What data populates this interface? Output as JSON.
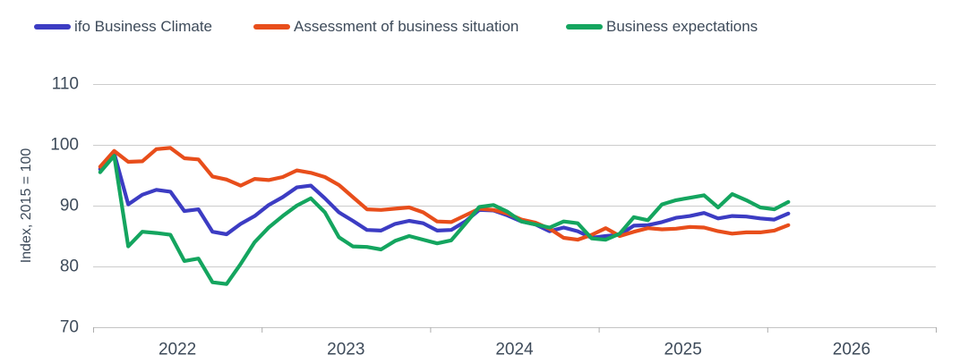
{
  "chart_data": {
    "type": "line",
    "title": "",
    "ylabel": "Index, 2015 = 100",
    "ylim": [
      70,
      110
    ],
    "y_ticks": [
      110,
      100,
      90,
      80,
      70
    ],
    "x_tick_year_labels": [
      "2022",
      "2023",
      "2024",
      "2025",
      "2026"
    ],
    "x_domain_months": 60,
    "x_start_month": "2022-01",
    "grid": "horizontal",
    "legend_position": "top",
    "months": [
      "2022-01",
      "2022-02",
      "2022-03",
      "2022-04",
      "2022-05",
      "2022-06",
      "2022-07",
      "2022-08",
      "2022-09",
      "2022-10",
      "2022-11",
      "2022-12",
      "2023-01",
      "2023-02",
      "2023-03",
      "2023-04",
      "2023-05",
      "2023-06",
      "2023-07",
      "2023-08",
      "2023-09",
      "2023-10",
      "2023-11",
      "2023-12",
      "2024-01",
      "2024-02",
      "2024-03",
      "2024-04",
      "2024-05",
      "2024-06",
      "2024-07",
      "2024-08",
      "2024-09",
      "2024-10",
      "2024-11",
      "2024-12",
      "2025-01",
      "2025-02",
      "2025-03",
      "2025-04",
      "2025-05",
      "2025-06",
      "2025-07",
      "2025-08",
      "2025-09",
      "2025-10",
      "2025-11",
      "2025-12",
      "2026-01",
      "2026-02"
    ],
    "series": [
      {
        "name": "ifo Business Climate",
        "color": "#3c3cc3",
        "values": [
          96.0,
          98.6,
          90.2,
          91.8,
          92.6,
          92.3,
          89.1,
          89.4,
          85.7,
          85.3,
          87.0,
          88.3,
          90.1,
          91.4,
          93.0,
          93.3,
          91.2,
          88.9,
          87.5,
          86.0,
          85.9,
          87.0,
          87.5,
          87.1,
          85.9,
          86.0,
          87.4,
          89.3,
          89.2,
          88.4,
          87.4,
          86.9,
          85.8,
          86.4,
          85.8,
          84.7,
          85.0,
          85.2,
          86.7,
          86.8,
          87.3,
          88.0,
          88.3,
          88.8,
          87.9,
          88.3,
          88.2,
          87.9,
          87.7,
          88.7
        ]
      },
      {
        "name": "Assessment of business situation",
        "color": "#e84e1b",
        "values": [
          96.4,
          99.0,
          97.2,
          97.3,
          99.3,
          99.5,
          97.8,
          97.6,
          94.8,
          94.3,
          93.3,
          94.4,
          94.2,
          94.7,
          95.8,
          95.4,
          94.7,
          93.4,
          91.4,
          89.4,
          89.3,
          89.5,
          89.7,
          88.9,
          87.4,
          87.3,
          88.4,
          89.5,
          89.3,
          88.7,
          87.7,
          87.2,
          86.2,
          84.7,
          84.4,
          85.2,
          86.3,
          85.0,
          85.7,
          86.3,
          86.1,
          86.2,
          86.5,
          86.4,
          85.8,
          85.4,
          85.6,
          85.6,
          85.9,
          86.8
        ]
      },
      {
        "name": "Business expectations",
        "color": "#14a55f",
        "values": [
          95.5,
          98.2,
          83.3,
          85.7,
          85.5,
          85.2,
          80.9,
          81.3,
          77.4,
          77.1,
          80.4,
          84.0,
          86.4,
          88.3,
          90.0,
          91.2,
          88.9,
          84.8,
          83.3,
          83.2,
          82.8,
          84.2,
          85.0,
          84.4,
          83.8,
          84.3,
          87.0,
          89.8,
          90.1,
          89.0,
          87.4,
          86.9,
          86.4,
          87.4,
          87.1,
          84.6,
          84.4,
          85.4,
          88.1,
          87.6,
          90.2,
          90.9,
          91.3,
          91.7,
          89.7,
          91.9,
          90.9,
          89.7,
          89.4,
          90.6
        ]
      }
    ],
    "style": {
      "grid_color": "#cccccc",
      "axis_line_color": "#c4c4c4",
      "tick_color": "#adadad",
      "text_color": "#3e4b5a",
      "line_width": 4.2
    }
  }
}
